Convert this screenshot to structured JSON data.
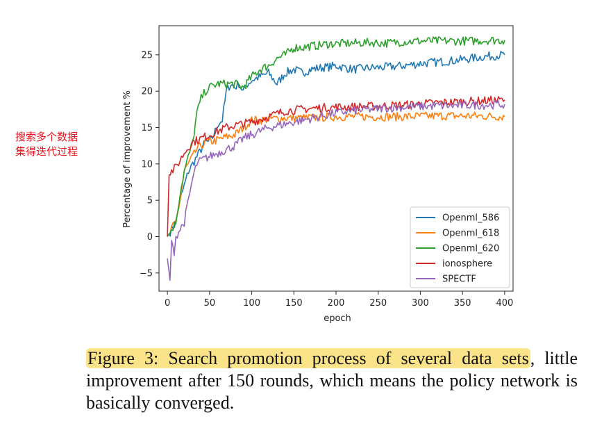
{
  "annotation": "搜索多个数据集得迭代过程",
  "caption": {
    "highlight": "Figure 3: Search promotion process of several data sets",
    "rest": ", little improvement after 150 rounds, which means the policy network is basically converged."
  },
  "chart_data": {
    "type": "line",
    "xlabel": "epoch",
    "ylabel": "Percentage of improvement %",
    "xlim": [
      -10,
      410
    ],
    "ylim": [
      -7.5,
      29
    ],
    "xticks": [
      0,
      50,
      100,
      150,
      200,
      250,
      300,
      350,
      400
    ],
    "yticks": [
      -5,
      0,
      5,
      10,
      15,
      20,
      25
    ],
    "grid": false,
    "legend": "lower-right",
    "series": [
      {
        "name": "Openml_586",
        "color": "#1f77b4",
        "x": [
          0,
          5,
          10,
          15,
          20,
          25,
          30,
          35,
          40,
          45,
          50,
          55,
          60,
          65,
          70,
          75,
          80,
          85,
          90,
          95,
          100,
          110,
          120,
          130,
          140,
          150,
          160,
          170,
          180,
          190,
          200,
          220,
          240,
          260,
          280,
          300,
          320,
          340,
          360,
          380,
          400
        ],
        "y": [
          0,
          1,
          2,
          5,
          7,
          9,
          10,
          11,
          12,
          13,
          13,
          14,
          15.5,
          16,
          20,
          21,
          20.5,
          21,
          20,
          21,
          21.5,
          22,
          22.5,
          21,
          22.5,
          23,
          22.5,
          23,
          23.2,
          23.3,
          23.5,
          23,
          23.2,
          23.3,
          23.5,
          23.8,
          24,
          24.2,
          24.5,
          24.8,
          25
        ]
      },
      {
        "name": "Openml_618",
        "color": "#ff7f0e",
        "x": [
          0,
          5,
          10,
          15,
          20,
          25,
          30,
          35,
          40,
          45,
          50,
          60,
          70,
          80,
          90,
          100,
          110,
          120,
          140,
          160,
          180,
          200,
          240,
          280,
          320,
          360,
          400
        ],
        "y": [
          0,
          1,
          2,
          5,
          9,
          10,
          11,
          12,
          12.5,
          13,
          13,
          13.3,
          13.7,
          14,
          15,
          16,
          16,
          16.2,
          16.3,
          16.3,
          16.4,
          16.5,
          16.5,
          16.5,
          16.6,
          16.6,
          16.5
        ]
      },
      {
        "name": "Openml_620",
        "color": "#2ca02c",
        "x": [
          0,
          5,
          10,
          15,
          20,
          25,
          30,
          35,
          40,
          45,
          50,
          55,
          60,
          70,
          80,
          90,
          100,
          110,
          120,
          130,
          140,
          150,
          160,
          170,
          180,
          190,
          200,
          220,
          240,
          260,
          280,
          300,
          320,
          340,
          360,
          380,
          400
        ],
        "y": [
          0,
          1,
          2,
          6,
          9,
          11,
          13,
          17,
          19,
          20,
          20.5,
          20.8,
          21,
          21,
          21,
          20.5,
          22,
          23,
          23.5,
          24.5,
          25,
          26,
          26,
          26.2,
          26.3,
          26.5,
          26.5,
          26.6,
          26.7,
          26.6,
          26.8,
          26.9,
          26.9,
          26.9,
          26.9,
          27,
          27
        ]
      },
      {
        "name": "ionosphere",
        "color": "#d62728",
        "x": [
          0,
          2,
          5,
          10,
          15,
          20,
          25,
          30,
          40,
          50,
          60,
          70,
          80,
          90,
          100,
          110,
          120,
          140,
          160,
          180,
          200,
          240,
          280,
          320,
          360,
          400
        ],
        "y": [
          0,
          8.5,
          9,
          9.5,
          10.5,
          11.5,
          12.3,
          13,
          13.5,
          14,
          14.5,
          15,
          15.3,
          15.5,
          15.8,
          16.1,
          16.5,
          17.3,
          17.5,
          17.7,
          17.8,
          17.9,
          18.1,
          18.4,
          18.6,
          18.8
        ]
      },
      {
        "name": "SPECTF",
        "color": "#9467bd",
        "x": [
          0,
          3,
          5,
          8,
          10,
          15,
          20,
          25,
          30,
          35,
          40,
          50,
          60,
          70,
          80,
          90,
          100,
          110,
          120,
          140,
          160,
          180,
          200,
          220,
          240,
          260,
          280,
          300,
          320,
          340,
          360,
          380,
          400
        ],
        "y": [
          -3,
          -6,
          -1,
          -2,
          0,
          1,
          2,
          5,
          8,
          10,
          10.5,
          11,
          11.5,
          12,
          12.5,
          13.5,
          14,
          14.5,
          15,
          15.5,
          16,
          16.5,
          17,
          17.3,
          17.5,
          17.7,
          17.8,
          17.9,
          18,
          18,
          18.1,
          18.1,
          18.2
        ]
      }
    ]
  }
}
